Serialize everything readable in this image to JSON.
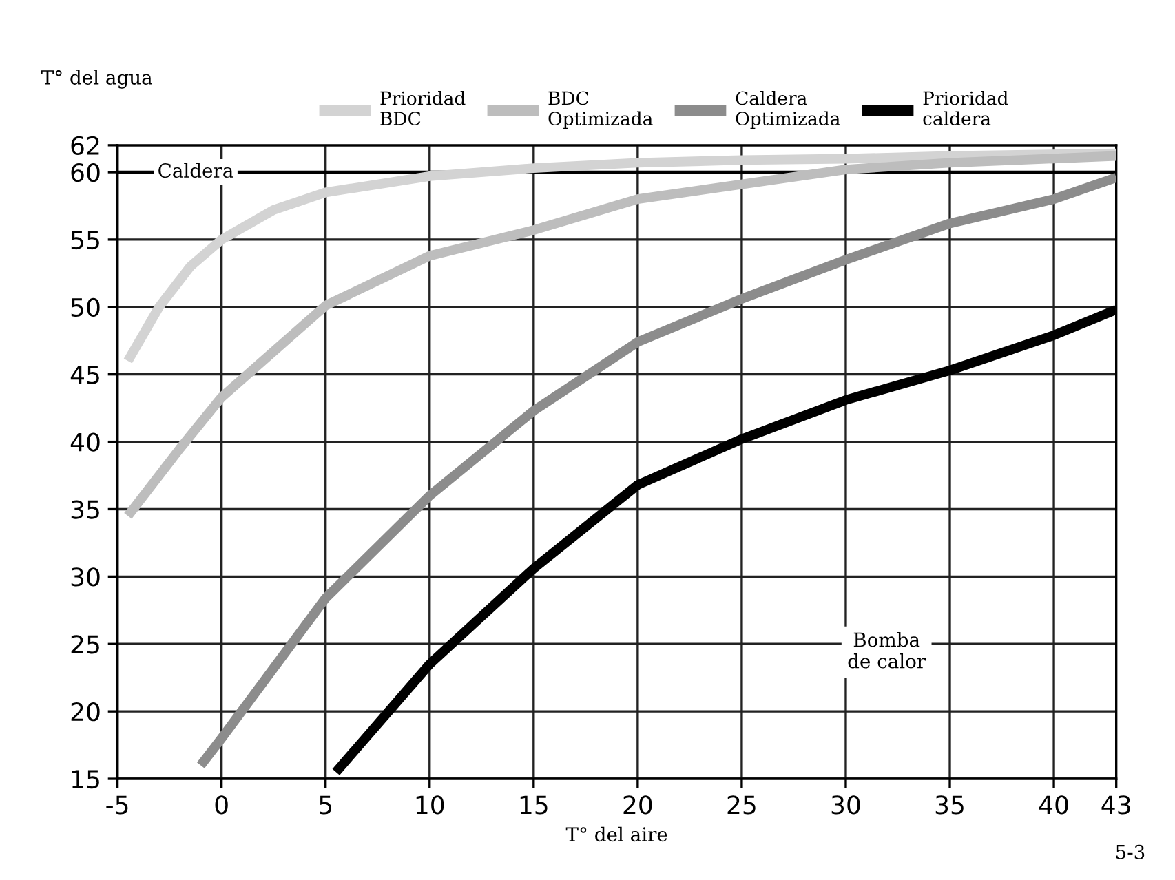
{
  "chart_data": {
    "type": "line",
    "xlabel": "T° del aire",
    "ylabel": "T° del agua",
    "xlim": [
      -5,
      43
    ],
    "xticks": [
      -5,
      0,
      5,
      10,
      15,
      20,
      25,
      30,
      35,
      40,
      43
    ],
    "ylim": [
      15,
      62
    ],
    "yticks": [
      15,
      20,
      25,
      30,
      35,
      40,
      45,
      50,
      55,
      60,
      62
    ],
    "grid": true,
    "legend": "top",
    "marker": "none",
    "line_style": "solid",
    "ref_lines": [
      {
        "axis": "y",
        "value": 60,
        "label": "Caldera",
        "color": "#000000"
      }
    ],
    "annotations": [
      "Bomba\nde calor",
      "5-3"
    ],
    "series": [
      {
        "name": "Prioridad\nBDC",
        "color": "#d3d3d3",
        "x": [
          -4.5,
          -3,
          -1.5,
          0,
          2.5,
          5,
          10,
          15,
          20,
          25,
          30,
          35,
          43
        ],
        "values": [
          46,
          50,
          53,
          55,
          57.2,
          58.5,
          59.7,
          60.3,
          60.7,
          60.9,
          61,
          61.2,
          61.4
        ]
      },
      {
        "name": "BDC\nOptimizada",
        "color": "#bdbdbd",
        "x": [
          -4.5,
          -2,
          0,
          5,
          10,
          15,
          20,
          25,
          30,
          35,
          43
        ],
        "values": [
          34.5,
          39.5,
          43.3,
          50.1,
          53.8,
          55.7,
          58,
          59.1,
          60.2,
          60.7,
          61.2
        ]
      },
      {
        "name": "Caldera\nOptimizada",
        "color": "#8c8c8c",
        "x": [
          -1,
          0,
          5,
          10,
          15,
          20,
          25,
          30,
          35,
          40,
          43
        ],
        "values": [
          16,
          18,
          28.4,
          36,
          42.3,
          47.4,
          50.6,
          53.5,
          56.2,
          58,
          59.6
        ]
      },
      {
        "name": "Prioridad\ncaldera",
        "color": "#000000",
        "x": [
          5.5,
          10,
          15,
          20,
          25,
          30,
          35,
          40,
          43
        ],
        "values": [
          15.5,
          23.5,
          30.6,
          36.8,
          40.2,
          43.1,
          45.3,
          47.9,
          49.8
        ]
      }
    ]
  }
}
